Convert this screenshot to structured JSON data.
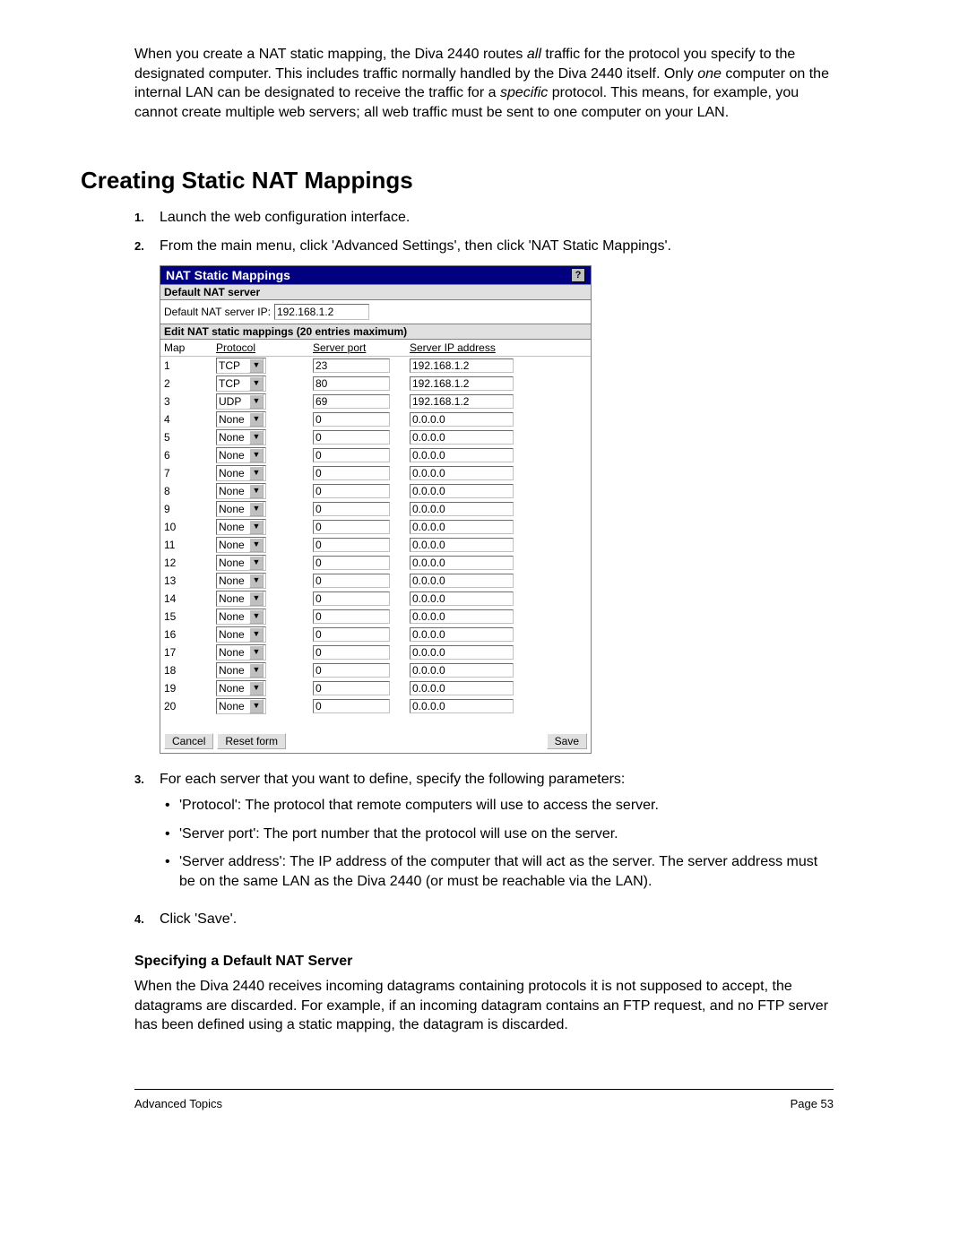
{
  "intro": {
    "text_parts": [
      "When you create a NAT static mapping, the Diva 2440 routes ",
      "all",
      " traffic for the protocol you specify to the designated computer. This includes traffic normally handled by the Diva 2440 itself. Only ",
      "one",
      " computer on the internal LAN can be designated to receive the traffic for a ",
      "specific",
      " protocol. This means, for example, you cannot create multiple web servers; all web traffic must be sent to one computer on your LAN."
    ]
  },
  "heading": "Creating Static NAT Mappings",
  "steps": {
    "s1_num": "1.",
    "s1_text": "Launch the web configuration interface.",
    "s2_num": "2.",
    "s2_text": "From the main menu, click 'Advanced Settings', then click 'NAT Static Mappings'.",
    "s3_num": "3.",
    "s3_text": "For each server that you want to define, specify the following parameters:",
    "s3_b1": "'Protocol': The protocol that remote computers will use to access the server.",
    "s3_b2": "'Server port': The port number that the protocol will use on the server.",
    "s3_b3": "'Server address': The IP address of the computer that will act as the server. The server address must be on the same LAN as the Diva 2440 (or must be reachable via the LAN).",
    "s4_num": "4.",
    "s4_text": "Click 'Save'."
  },
  "panel": {
    "title": "NAT Static Mappings",
    "help": "?",
    "default_section": "Default NAT server",
    "default_label": "Default NAT server IP:",
    "default_value": "192.168.1.2",
    "edit_section": "Edit NAT static mappings (20 entries maximum)",
    "headers": {
      "map": "Map",
      "protocol": "Protocol",
      "port": "Server port",
      "ip": "Server IP address"
    },
    "rows": [
      {
        "n": "1",
        "proto": "TCP",
        "port": "23",
        "ip": "192.168.1.2"
      },
      {
        "n": "2",
        "proto": "TCP",
        "port": "80",
        "ip": "192.168.1.2"
      },
      {
        "n": "3",
        "proto": "UDP",
        "port": "69",
        "ip": "192.168.1.2"
      },
      {
        "n": "4",
        "proto": "None",
        "port": "0",
        "ip": "0.0.0.0"
      },
      {
        "n": "5",
        "proto": "None",
        "port": "0",
        "ip": "0.0.0.0"
      },
      {
        "n": "6",
        "proto": "None",
        "port": "0",
        "ip": "0.0.0.0"
      },
      {
        "n": "7",
        "proto": "None",
        "port": "0",
        "ip": "0.0.0.0"
      },
      {
        "n": "8",
        "proto": "None",
        "port": "0",
        "ip": "0.0.0.0"
      },
      {
        "n": "9",
        "proto": "None",
        "port": "0",
        "ip": "0.0.0.0"
      },
      {
        "n": "10",
        "proto": "None",
        "port": "0",
        "ip": "0.0.0.0"
      },
      {
        "n": "11",
        "proto": "None",
        "port": "0",
        "ip": "0.0.0.0"
      },
      {
        "n": "12",
        "proto": "None",
        "port": "0",
        "ip": "0.0.0.0"
      },
      {
        "n": "13",
        "proto": "None",
        "port": "0",
        "ip": "0.0.0.0"
      },
      {
        "n": "14",
        "proto": "None",
        "port": "0",
        "ip": "0.0.0.0"
      },
      {
        "n": "15",
        "proto": "None",
        "port": "0",
        "ip": "0.0.0.0"
      },
      {
        "n": "16",
        "proto": "None",
        "port": "0",
        "ip": "0.0.0.0"
      },
      {
        "n": "17",
        "proto": "None",
        "port": "0",
        "ip": "0.0.0.0"
      },
      {
        "n": "18",
        "proto": "None",
        "port": "0",
        "ip": "0.0.0.0"
      },
      {
        "n": "19",
        "proto": "None",
        "port": "0",
        "ip": "0.0.0.0"
      },
      {
        "n": "20",
        "proto": "None",
        "port": "0",
        "ip": "0.0.0.0"
      }
    ],
    "buttons": {
      "cancel": "Cancel",
      "reset": "Reset form",
      "save": "Save"
    }
  },
  "subsection": {
    "heading": "Specifying a Default NAT Server",
    "text": "When the Diva 2440 receives incoming datagrams containing protocols it is not supposed to accept, the datagrams are discarded. For example, if an incoming datagram contains an FTP request, and no FTP server has been defined using a static mapping, the datagram is discarded."
  },
  "footer": {
    "left": "Advanced Topics",
    "right": "Page 53"
  }
}
